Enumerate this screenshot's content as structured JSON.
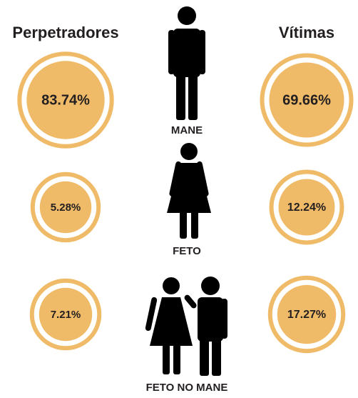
{
  "chart_data": {
    "type": "bubble",
    "categories": [
      "MANE",
      "FETO",
      "FETO NO MANE"
    ],
    "series": [
      {
        "name": "Perpetradores",
        "color": "#f0bb68",
        "values": [
          83.74,
          5.28,
          7.21
        ],
        "value_labels": [
          "83.74%",
          "5.28%",
          "7.21%"
        ]
      },
      {
        "name": "Vítimas",
        "color": "#f0bb68",
        "values": [
          69.66,
          12.24,
          17.27
        ],
        "value_labels": [
          "69.66%",
          "12.24%",
          "17.27%"
        ]
      }
    ]
  }
}
